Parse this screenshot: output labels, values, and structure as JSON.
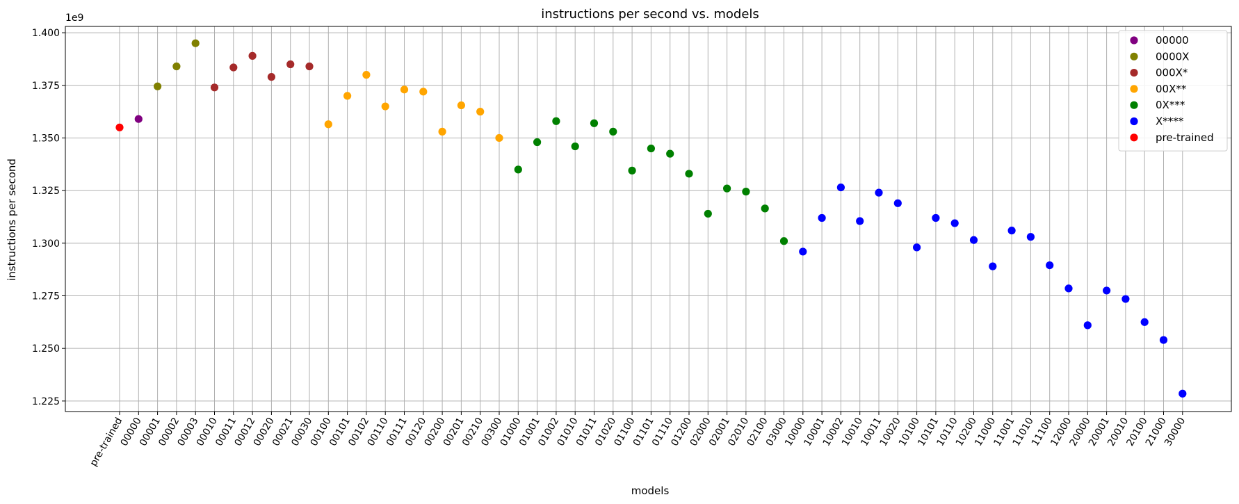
{
  "chart_data": {
    "type": "scatter",
    "title": "instructions per second vs. models",
    "xlabel": "models",
    "ylabel": "instructions per second",
    "y_offset_label": "1e9",
    "ylim": [
      1.22,
      1.403
    ],
    "yticks": [
      1.225,
      1.25,
      1.275,
      1.3,
      1.325,
      1.35,
      1.375,
      1.4
    ],
    "ytick_labels": [
      "1.225",
      "1.250",
      "1.275",
      "1.300",
      "1.325",
      "1.350",
      "1.375",
      "1.400"
    ],
    "grid": true,
    "legend_position": "top-right",
    "categories": [
      "pre-trained",
      "00000",
      "00001",
      "00002",
      "00003",
      "00010",
      "00011",
      "00012",
      "00020",
      "00021",
      "00030",
      "00100",
      "00101",
      "00102",
      "00110",
      "00111",
      "00120",
      "00200",
      "00201",
      "00210",
      "00300",
      "01000",
      "01001",
      "01002",
      "01010",
      "01011",
      "01020",
      "01100",
      "01101",
      "01110",
      "01200",
      "02000",
      "02001",
      "02010",
      "02100",
      "03000",
      "10000",
      "10001",
      "10002",
      "10010",
      "10011",
      "10020",
      "10100",
      "10101",
      "10110",
      "10200",
      "11000",
      "11001",
      "11010",
      "11100",
      "12000",
      "20000",
      "20001",
      "20010",
      "20100",
      "21000",
      "30000"
    ],
    "series": [
      {
        "name": "00000",
        "color": "#800080",
        "x": [
          "00000"
        ],
        "y": [
          1.359
        ]
      },
      {
        "name": "0000X",
        "color": "#808000",
        "x": [
          "00001",
          "00002",
          "00003"
        ],
        "y": [
          1.3745,
          1.384,
          1.395
        ]
      },
      {
        "name": "000X*",
        "color": "#a52a2a",
        "x": [
          "00010",
          "00011",
          "00012",
          "00020",
          "00021",
          "00030"
        ],
        "y": [
          1.374,
          1.3835,
          1.389,
          1.379,
          1.385,
          1.384
        ]
      },
      {
        "name": "00X**",
        "color": "#ffa500",
        "x": [
          "00100",
          "00101",
          "00102",
          "00110",
          "00111",
          "00120",
          "00200",
          "00201",
          "00210",
          "00300"
        ],
        "y": [
          1.3565,
          1.37,
          1.38,
          1.365,
          1.373,
          1.372,
          1.353,
          1.3655,
          1.3625,
          1.35
        ]
      },
      {
        "name": "0X***",
        "color": "#008000",
        "x": [
          "01000",
          "01001",
          "01002",
          "01010",
          "01011",
          "01020",
          "01100",
          "01101",
          "01110",
          "01200",
          "02000",
          "02001",
          "02010",
          "02100",
          "03000"
        ],
        "y": [
          1.335,
          1.348,
          1.358,
          1.346,
          1.357,
          1.353,
          1.3345,
          1.345,
          1.3425,
          1.333,
          1.314,
          1.326,
          1.3245,
          1.3165,
          1.301
        ]
      },
      {
        "name": "X****",
        "color": "#0000ff",
        "x": [
          "10000",
          "10001",
          "10002",
          "10010",
          "10011",
          "10020",
          "10100",
          "10101",
          "10110",
          "10200",
          "11000",
          "11001",
          "11010",
          "11100",
          "12000",
          "20000",
          "20001",
          "20010",
          "20100",
          "21000",
          "30000"
        ],
        "y": [
          1.296,
          1.312,
          1.3265,
          1.3105,
          1.324,
          1.319,
          1.298,
          1.312,
          1.3095,
          1.3015,
          1.289,
          1.306,
          1.303,
          1.2895,
          1.2785,
          1.261,
          1.2775,
          1.2735,
          1.2625,
          1.254,
          1.2285
        ]
      },
      {
        "name": "pre-trained",
        "color": "#ff0000",
        "x": [
          "pre-trained"
        ],
        "y": [
          1.355
        ]
      }
    ]
  }
}
